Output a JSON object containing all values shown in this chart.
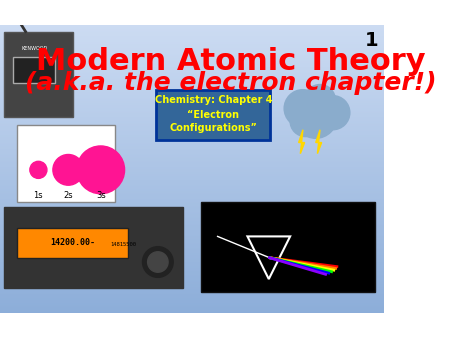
{
  "title_line1": "Modern Atomic Theory",
  "title_line2": "(a.k.a. the electron chapter!)",
  "title_color": "#FF0000",
  "slide_number": "1",
  "slide_number_color": "#000000",
  "bg_color_top": "#6699CC",
  "bg_color_bottom": "#AACCEE",
  "box_text_line1": "Chemistry: Chapter 4",
  "box_text_line2": "“Electron",
  "box_text_line3": "Configurations”",
  "box_text_color": "#FFFF00",
  "box_border_color": "#003399",
  "box_bg_color": "#336699",
  "figsize": [
    4.5,
    3.38
  ],
  "dpi": 100
}
